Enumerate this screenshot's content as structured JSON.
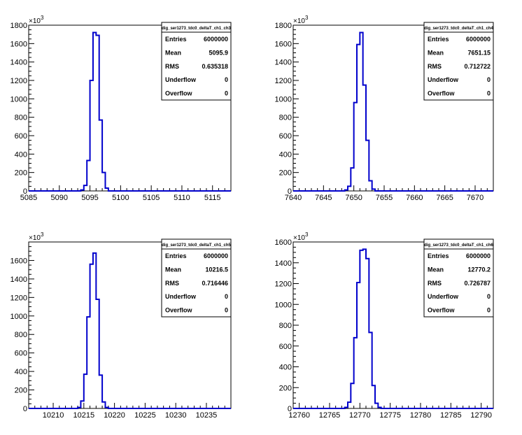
{
  "stats_labels": {
    "entries": "Entries",
    "mean": "Mean",
    "rms": "RMS",
    "underflow": "Underflow",
    "overflow": "Overflow"
  },
  "exponent_label": "×10",
  "exponent_power": "3",
  "colors": {
    "line": "#0000cc",
    "axis": "#000000",
    "frame": "#000000",
    "background": "#ffffff"
  },
  "chart_data": [
    {
      "type": "histogram",
      "title": "dig_ser1273_tdc0_deltaT_ch1_ch3",
      "stats": {
        "entries": "6000000",
        "mean": "5095.9",
        "rms": "0.635318",
        "underflow": "0",
        "overflow": "0"
      },
      "xlim": [
        5085,
        5118
      ],
      "ylim": [
        0,
        1800
      ],
      "xticks": [
        5085,
        5090,
        5095,
        5100,
        5105,
        5110,
        5115
      ],
      "yticks": [
        0,
        200,
        400,
        600,
        800,
        1000,
        1200,
        1400,
        1600,
        1800
      ],
      "y_scale": "×10^3",
      "bin_width": 0.5,
      "bin_edges_start": 5093.5,
      "values": [
        10,
        60,
        330,
        1200,
        1720,
        1690,
        770,
        200,
        30,
        0
      ]
    },
    {
      "type": "histogram",
      "title": "dig_ser1273_tdc0_deltaT_ch1_ch4",
      "stats": {
        "entries": "6000000",
        "mean": "7651.15",
        "rms": "0.712722",
        "underflow": "0",
        "overflow": "0"
      },
      "xlim": [
        7640,
        7673
      ],
      "ylim": [
        0,
        1800
      ],
      "xticks": [
        7640,
        7645,
        7650,
        7655,
        7660,
        7665,
        7670
      ],
      "yticks": [
        0,
        200,
        400,
        600,
        800,
        1000,
        1200,
        1400,
        1600,
        1800
      ],
      "y_scale": "×10^3",
      "bin_width": 0.5,
      "bin_edges_start": 7648.5,
      "values": [
        10,
        50,
        250,
        960,
        1590,
        1720,
        1150,
        550,
        110,
        20,
        0
      ]
    },
    {
      "type": "histogram",
      "title": "dig_ser1273_tdc0_deltaT_ch1_ch5",
      "stats": {
        "entries": "6000000",
        "mean": "10216.5",
        "rms": "0.716446",
        "underflow": "0",
        "overflow": "0"
      },
      "xlim": [
        10206,
        10239
      ],
      "ylim": [
        0,
        1800
      ],
      "xticks": [
        10210,
        10215,
        10220,
        10225,
        10230,
        10235
      ],
      "yticks": [
        0,
        200,
        400,
        600,
        800,
        1000,
        1200,
        1400,
        1600
      ],
      "y_scale": "×10^3",
      "bin_width": 0.5,
      "bin_edges_start": 10214,
      "values": [
        10,
        80,
        370,
        990,
        1560,
        1680,
        1180,
        360,
        70,
        10,
        0
      ]
    },
    {
      "type": "histogram",
      "title": "dig_ser1273_tdc0_deltaT_ch1_ch6",
      "stats": {
        "entries": "6000000",
        "mean": "12770.2",
        "rms": "0.726787",
        "underflow": "0",
        "overflow": "0"
      },
      "xlim": [
        12759,
        12792
      ],
      "ylim": [
        0,
        1600
      ],
      "xticks": [
        12760,
        12765,
        12770,
        12775,
        12780,
        12785,
        12790
      ],
      "yticks": [
        0,
        200,
        400,
        600,
        800,
        1000,
        1200,
        1400,
        1600
      ],
      "y_scale": "×10^3",
      "bin_width": 0.5,
      "bin_edges_start": 12767.5,
      "values": [
        10,
        60,
        240,
        680,
        1210,
        1520,
        1530,
        1440,
        730,
        220,
        50,
        10,
        0
      ]
    }
  ]
}
